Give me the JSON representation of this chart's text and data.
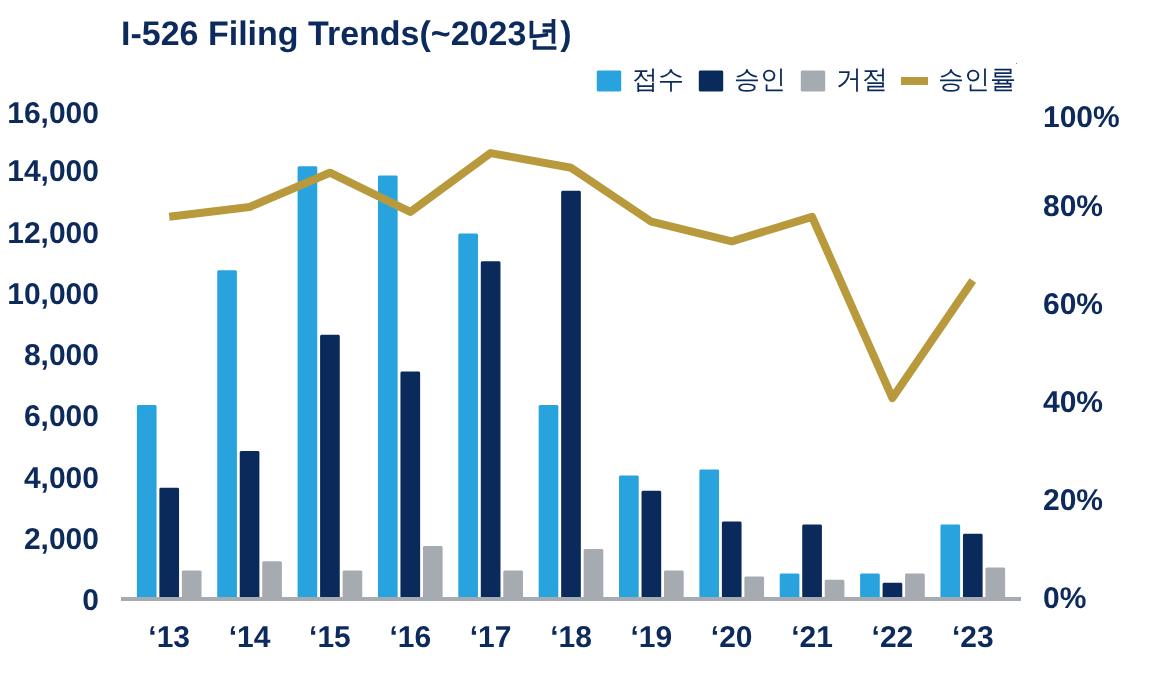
{
  "chart_data": {
    "type": "bar",
    "title": "I-526 Filing Trends(~2023년)",
    "categories": [
      "‘13",
      "‘14",
      "‘15",
      "‘16",
      "‘17",
      "‘18",
      "‘19",
      "‘20",
      "‘21",
      "‘22",
      "‘23"
    ],
    "series": [
      {
        "name": "접수",
        "color": "#29a3dd",
        "values": [
          6300,
          10700,
          14100,
          13800,
          11900,
          6300,
          4000,
          4200,
          800,
          800,
          2400
        ]
      },
      {
        "name": "승인",
        "color": "#0b2a5c",
        "values": [
          3600,
          4800,
          8600,
          7400,
          11000,
          13300,
          3500,
          2500,
          2400,
          500,
          2100
        ]
      },
      {
        "name": "거절",
        "color": "#a6abb1",
        "values": [
          900,
          1200,
          900,
          1700,
          900,
          1600,
          900,
          700,
          600,
          800,
          1000
        ]
      },
      {
        "name": "승인률",
        "color": "#b89a3d",
        "type": "line",
        "axis": "y2",
        "values": [
          78,
          80,
          87,
          79,
          91,
          88,
          77,
          73,
          78,
          41,
          65
        ]
      }
    ],
    "ylim": [
      0,
      16000
    ],
    "yticks": [
      {
        "value": 0,
        "label": "0"
      },
      {
        "value": 2000,
        "label": "2,000"
      },
      {
        "value": 4000,
        "label": "4,000"
      },
      {
        "value": 6000,
        "label": "6,000"
      },
      {
        "value": 8000,
        "label": "8,000"
      },
      {
        "value": 10000,
        "label": "10,000"
      },
      {
        "value": 12000,
        "label": "12,000"
      },
      {
        "value": 14000,
        "label": "14,000"
      },
      {
        "value": 16000,
        "label": "16,000"
      }
    ],
    "y2lim": [
      0,
      100
    ],
    "y2ticks": [
      {
        "value": 0,
        "label": "0%"
      },
      {
        "value": 20,
        "label": "20%"
      },
      {
        "value": 40,
        "label": "40%"
      },
      {
        "value": 60,
        "label": "60%"
      },
      {
        "value": 80,
        "label": "80%"
      },
      {
        "value": 100,
        "label": "100%"
      }
    ],
    "grid": false,
    "legend": "top right"
  }
}
